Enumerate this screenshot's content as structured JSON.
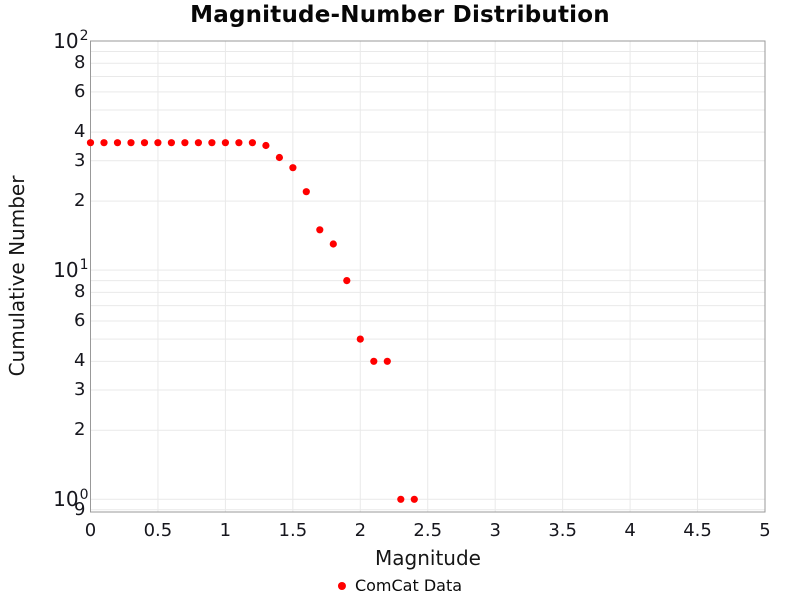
{
  "chart_data": {
    "type": "scatter",
    "title": "Magnitude-Number Distribution",
    "xlabel": "Magnitude",
    "ylabel": "Cumulative Number",
    "grid": true,
    "legend": {
      "position": "bottom-center",
      "entries": [
        {
          "label": "ComCat Data",
          "marker": "circle",
          "marker_color": "#ff0000"
        }
      ]
    },
    "x_axis": {
      "scale": "linear",
      "min": 0,
      "max": 5,
      "ticks": [
        0,
        0.5,
        1,
        1.5,
        2,
        2.5,
        3,
        3.5,
        4,
        4.5,
        5
      ],
      "tick_labels": [
        "0",
        "0.5",
        "1",
        "1.5",
        "2",
        "2.5",
        "3",
        "3.5",
        "4",
        "4.5",
        "5"
      ]
    },
    "y_axis": {
      "scale": "log",
      "min": 0.88,
      "max": 100,
      "major_ticks": [
        {
          "base": "10",
          "exp": "2",
          "value": 100
        },
        {
          "base": "10",
          "exp": "1",
          "value": 10
        },
        {
          "base": "10",
          "exp": "0",
          "value": 1
        }
      ],
      "labeled_minor_ticks": [
        {
          "text": "8",
          "value": 80
        },
        {
          "text": "6",
          "value": 60
        },
        {
          "text": "4",
          "value": 40
        },
        {
          "text": "3",
          "value": 30
        },
        {
          "text": "2",
          "value": 20
        },
        {
          "text": "8",
          "value": 8
        },
        {
          "text": "6",
          "value": 6
        },
        {
          "text": "4",
          "value": 4
        },
        {
          "text": "3",
          "value": 3
        },
        {
          "text": "2",
          "value": 2
        },
        {
          "text": "9",
          "value": 0.9
        }
      ]
    },
    "series": [
      {
        "name": "ComCat Data",
        "color": "#ff0000",
        "marker": "circle",
        "x": [
          0.0,
          0.1,
          0.2,
          0.3,
          0.4,
          0.5,
          0.6,
          0.7,
          0.8,
          0.9,
          1.0,
          1.1,
          1.2,
          1.3,
          1.4,
          1.5,
          1.6,
          1.7,
          1.8,
          1.9,
          2.0,
          2.1,
          2.2,
          2.3,
          2.4
        ],
        "y": [
          36,
          36,
          36,
          36,
          36,
          36,
          36,
          36,
          36,
          36,
          36,
          36,
          36,
          35,
          31,
          28,
          22,
          15,
          13,
          9,
          5,
          4,
          4,
          1,
          1
        ]
      }
    ]
  },
  "style": {
    "background": "#ffffff",
    "grid_color": "#e9e9e9",
    "frame_color": "#999999",
    "marker_color": "#ff0000",
    "text_color": "#16161d",
    "title_color": "#070707"
  }
}
